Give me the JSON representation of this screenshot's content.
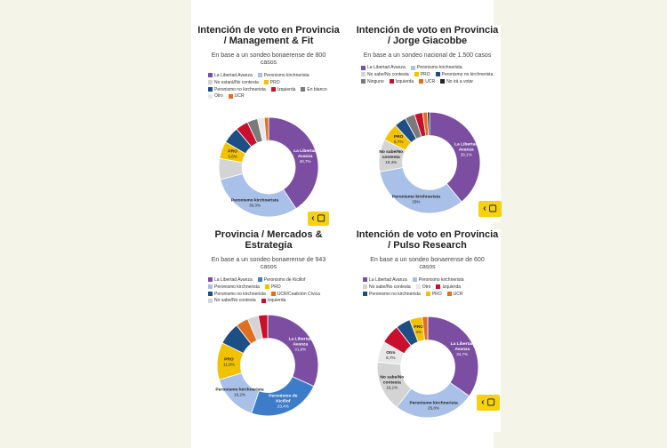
{
  "chart_data": [
    {
      "type": "donut",
      "title": "Intención de voto en Provincia / Management & Fit",
      "subtitle": "En base a un sondeo bonaerense de 800 casos",
      "legend": [
        {
          "label": "La Libertad Avanza",
          "color": "#7b4ea2"
        },
        {
          "label": "Peronismo kirchnerista",
          "color": "#a9c0e8"
        },
        {
          "label": "No estará/No contesta",
          "color": "#d4d4d4"
        },
        {
          "label": "PRO",
          "color": "#f2c200"
        },
        {
          "label": "Peronismo no kirchnerista",
          "color": "#1d4f86"
        },
        {
          "label": "Izquierda",
          "color": "#c8102e"
        },
        {
          "label": "En blanco",
          "color": "#7a7a7a"
        },
        {
          "label": "Otro",
          "color": "#e8e8e8"
        },
        {
          "label": "UCR",
          "color": "#e07020"
        }
      ],
      "slices": [
        {
          "label": "La Libertad Avanza",
          "value": 40.7,
          "color": "#7b4ea2",
          "name": "La Libertad Avanza",
          "pct": "40,7%"
        },
        {
          "label": "Peronismo kirchnerista",
          "value": 30.3,
          "color": "#a9c0e8",
          "name": "Peronismo kirchnerista",
          "pct": "30,3%"
        },
        {
          "label": "No estará/No contesta",
          "value": 6.8,
          "color": "#d4d4d4",
          "name": "",
          "pct": ""
        },
        {
          "label": "PRO",
          "value": 5.6,
          "color": "#f2c200",
          "name": "PRO",
          "pct": "5,6%"
        },
        {
          "label": "Peronismo no kirchnerista",
          "value": 5.5,
          "color": "#1d4f86",
          "name": "",
          "pct": ""
        },
        {
          "label": "Izquierda",
          "value": 4.1,
          "color": "#c8102e",
          "name": "",
          "pct": ""
        },
        {
          "label": "En blanco",
          "value": 3.4,
          "color": "#7a7a7a",
          "name": "",
          "pct": ""
        },
        {
          "label": "Otro",
          "value": 2.2,
          "color": "#e8e8e8",
          "name": "",
          "pct": ""
        },
        {
          "label": "UCR",
          "value": 1.4,
          "color": "#e07020",
          "name": "",
          "pct": ""
        }
      ]
    },
    {
      "type": "donut",
      "title": "Intención de voto en Provincia / Jorge Giacobbe",
      "subtitle": "En base a un sondeo nacional de 1.500 casos",
      "legend": [
        {
          "label": "La Libertad Avanza",
          "color": "#7b4ea2"
        },
        {
          "label": "Peronismo kirchnerista",
          "color": "#a9c0e8"
        },
        {
          "label": "No sabe/No contesta",
          "color": "#d4d4d4"
        },
        {
          "label": "PRO",
          "color": "#f2c200"
        },
        {
          "label": "Peronismo no kirchnerista",
          "color": "#1d4f86"
        },
        {
          "label": "Ninguno",
          "color": "#7a7a7a"
        },
        {
          "label": "Izquierda",
          "color": "#c8102e"
        },
        {
          "label": "UCR",
          "color": "#e07020"
        },
        {
          "label": "No irá a votar",
          "color": "#222222"
        }
      ],
      "slices": [
        {
          "label": "La Libertad Avanza",
          "value": 39.1,
          "color": "#7b4ea2",
          "name": "La Libertad Avanza",
          "pct": "39,1%"
        },
        {
          "label": "Peronismo kirchnerista",
          "value": 33.0,
          "color": "#a9c0e8",
          "name": "Peronismo kirchnerista",
          "pct": "33%"
        },
        {
          "label": "No sabe/No contesta",
          "value": 10.4,
          "color": "#d4d4d4",
          "name": "No sabe/No contesta",
          "pct": "10,4%"
        },
        {
          "label": "PRO",
          "value": 5.7,
          "color": "#f2c200",
          "name": "PRO",
          "pct": "5,7%"
        },
        {
          "label": "Peronismo no kirchnerista",
          "value": 3.8,
          "color": "#1d4f86",
          "name": "",
          "pct": ""
        },
        {
          "label": "Ninguno",
          "value": 3.2,
          "color": "#7a7a7a",
          "name": "",
          "pct": ""
        },
        {
          "label": "Izquierda",
          "value": 2.6,
          "color": "#c8102e",
          "name": "",
          "pct": ""
        },
        {
          "label": "UCR",
          "value": 1.5,
          "color": "#e07020",
          "name": "",
          "pct": ""
        },
        {
          "label": "No irá a votar",
          "value": 0.7,
          "color": "#222222",
          "name": "",
          "pct": ""
        }
      ]
    },
    {
      "type": "donut",
      "title": "Provincia / Mercados & Estrategia",
      "subtitle": "En base a un sondeo bonaerense de 943 casos",
      "legend": [
        {
          "label": "La Libertad Avanza",
          "color": "#7b4ea2"
        },
        {
          "label": "Peronismo de Kicillof",
          "color": "#3d7cc9"
        },
        {
          "label": "Peronismo kirchnerista",
          "color": "#a9c0e8"
        },
        {
          "label": "PRO",
          "color": "#f2c200"
        },
        {
          "label": "Peronismo no kirchnerista",
          "color": "#1d4f86"
        },
        {
          "label": "UCR/Coalición Cívica",
          "color": "#e07020"
        },
        {
          "label": "No sabe/No contesta",
          "color": "#d4d4d4"
        },
        {
          "label": "Izquierda",
          "color": "#c8102e"
        }
      ],
      "slices": [
        {
          "label": "La Libertad Avanza",
          "value": 31.8,
          "color": "#7b4ea2",
          "name": "La Libertad Avanza",
          "pct": "31,8%"
        },
        {
          "label": "Peronismo de Kicillof",
          "value": 23.4,
          "color": "#3d7cc9",
          "name": "Peronismo de Kicillof",
          "pct": "23,4%"
        },
        {
          "label": "Peronismo kirchnerista",
          "value": 15.2,
          "color": "#a9c0e8",
          "name": "Peronismo kirchnerista",
          "pct": "15,2%"
        },
        {
          "label": "PRO",
          "value": 11.9,
          "color": "#f2c200",
          "name": "PRO",
          "pct": "11,9%"
        },
        {
          "label": "Peronismo no kirchnerista",
          "value": 7.2,
          "color": "#1d4f86",
          "name": "",
          "pct": ""
        },
        {
          "label": "UCR/Coalición Cívica",
          "value": 4.0,
          "color": "#e07020",
          "name": "",
          "pct": ""
        },
        {
          "label": "No sabe/No contesta",
          "value": 3.5,
          "color": "#d4d4d4",
          "name": "",
          "pct": ""
        },
        {
          "label": "Izquierda",
          "value": 3.0,
          "color": "#c8102e",
          "name": "",
          "pct": ""
        }
      ]
    },
    {
      "type": "donut",
      "title": "Intención de voto en Provincia / Pulso Research",
      "subtitle": "En base a un sondeo bonaerense de 600 casos",
      "legend": [
        {
          "label": "La Libertad Avanza",
          "color": "#7b4ea2"
        },
        {
          "label": "Peronismo kirchnerista",
          "color": "#a9c0e8"
        },
        {
          "label": "No sabe/No contesta",
          "color": "#d4d4d4"
        },
        {
          "label": "Otro",
          "color": "#e8e8e8"
        },
        {
          "label": "Izquierda",
          "color": "#c8102e"
        },
        {
          "label": "Peronismo no kirchnerista",
          "color": "#1d4f86"
        },
        {
          "label": "PRO",
          "color": "#f2c200"
        },
        {
          "label": "UCR",
          "color": "#e07020"
        }
      ],
      "slices": [
        {
          "label": "La Libertad Avanza",
          "value": 34.7,
          "color": "#7b4ea2",
          "name": "La Libertad Avanza",
          "pct": "34,7%"
        },
        {
          "label": "Peronismo kirchnerista",
          "value": 25.8,
          "color": "#a9c0e8",
          "name": "Peronismo kirchnerista",
          "pct": "25,8%"
        },
        {
          "label": "No sabe/No contesta",
          "value": 16.1,
          "color": "#d4d4d4",
          "name": "No sabe/No contesta",
          "pct": "16,1%"
        },
        {
          "label": "Otro",
          "value": 6.7,
          "color": "#e8e8e8",
          "name": "Otro",
          "pct": "6,7%"
        },
        {
          "label": "Izquierda",
          "value": 6.2,
          "color": "#c8102e",
          "name": "",
          "pct": ""
        },
        {
          "label": "Peronismo no kirchnerista",
          "value": 4.7,
          "color": "#1d4f86",
          "name": "",
          "pct": ""
        },
        {
          "label": "PRO",
          "value": 4.0,
          "color": "#f2c200",
          "name": "PRO",
          "pct": "4%"
        },
        {
          "label": "UCR",
          "value": 1.8,
          "color": "#e07020",
          "name": "",
          "pct": ""
        }
      ]
    }
  ]
}
